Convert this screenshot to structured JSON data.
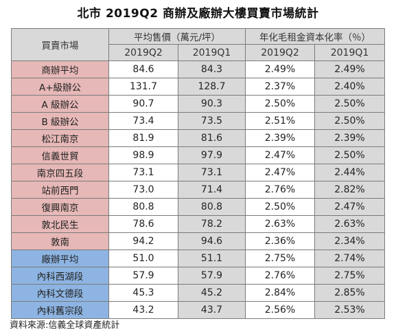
{
  "title": "北市 2019Q2 商辦及廠辦大樓買賣市場統計",
  "table": {
    "market_header": "買賣市場",
    "price_header": "平均售價（萬元/坪）",
    "yield_header": "年化毛租金資本化率（％）",
    "period_current": "2019Q2",
    "period_previous": "2019Q1",
    "rows": [
      {
        "market": "商辦平均",
        "price_q2": "84.6",
        "price_q1": "84.3",
        "yield_q2": "2.49%",
        "yield_q1": "2.49%",
        "group": "office"
      },
      {
        "market": "A+級辦公",
        "price_q2": "131.7",
        "price_q1": "128.7",
        "yield_q2": "2.37%",
        "yield_q1": "2.40%",
        "group": "office"
      },
      {
        "market": "A 級辦公",
        "price_q2": "90.7",
        "price_q1": "90.3",
        "yield_q2": "2.50%",
        "yield_q1": "2.50%",
        "group": "office"
      },
      {
        "market": "B 級辦公",
        "price_q2": "73.4",
        "price_q1": "73.5",
        "yield_q2": "2.51%",
        "yield_q1": "2.50%",
        "group": "office"
      },
      {
        "market": "松江南京",
        "price_q2": "81.9",
        "price_q1": "81.6",
        "yield_q2": "2.39%",
        "yield_q1": "2.39%",
        "group": "office"
      },
      {
        "market": "信義世貿",
        "price_q2": "98.9",
        "price_q1": "97.9",
        "yield_q2": "2.47%",
        "yield_q1": "2.50%",
        "group": "office"
      },
      {
        "market": "南京四五段",
        "price_q2": "73.1",
        "price_q1": "73.1",
        "yield_q2": "2.47%",
        "yield_q1": "2.44%",
        "group": "office"
      },
      {
        "market": "站前西門",
        "price_q2": "73.0",
        "price_q1": "71.4",
        "yield_q2": "2.76%",
        "yield_q1": "2.82%",
        "group": "office"
      },
      {
        "market": "復興南京",
        "price_q2": "80.8",
        "price_q1": "80.8",
        "yield_q2": "2.50%",
        "yield_q1": "2.47%",
        "group": "office"
      },
      {
        "market": "敦北民生",
        "price_q2": "78.6",
        "price_q1": "78.2",
        "yield_q2": "2.63%",
        "yield_q1": "2.63%",
        "group": "office"
      },
      {
        "market": "敦南",
        "price_q2": "94.2",
        "price_q1": "94.6",
        "yield_q2": "2.36%",
        "yield_q1": "2.34%",
        "group": "office"
      },
      {
        "market": "廠辦平均",
        "price_q2": "51.0",
        "price_q1": "51.1",
        "yield_q2": "2.75%",
        "yield_q1": "2.74%",
        "group": "factory"
      },
      {
        "market": "內科西湖段",
        "price_q2": "57.9",
        "price_q1": "57.9",
        "yield_q2": "2.76%",
        "yield_q1": "2.75%",
        "group": "factory"
      },
      {
        "market": "內科文德段",
        "price_q2": "45.3",
        "price_q1": "45.2",
        "yield_q2": "2.84%",
        "yield_q1": "2.85%",
        "group": "factory"
      },
      {
        "market": "內科舊宗段",
        "price_q2": "43.2",
        "price_q1": "43.7",
        "yield_q2": "2.56%",
        "yield_q1": "2.53%",
        "group": "factory"
      }
    ]
  },
  "source": "資料來源:信義全球資產統計",
  "colors": {
    "office_label": "#e6b8b7",
    "factory_label": "#8db4e2",
    "header": "#d9d9d9",
    "previous_column": "#d9d9d9"
  }
}
